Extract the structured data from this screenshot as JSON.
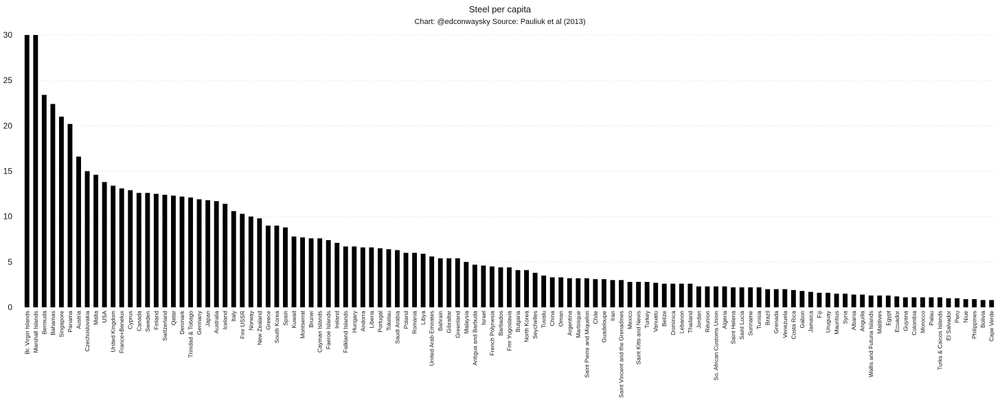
{
  "chart_data": {
    "type": "bar",
    "title": "Steel per capita",
    "subtitle": "Chart: @edconwaysky Source: Pauliuk et al (2013)",
    "ylim": [
      0,
      30
    ],
    "yticks": [
      0,
      5,
      10,
      15,
      20,
      25,
      30
    ],
    "grid": true,
    "bar_color": "#000000",
    "categories": [
      "Br. Virgin Islands",
      "Marshall Islands",
      "Bermuda",
      "Bahamas",
      "Singapore",
      "Panama",
      "Austria",
      "Czechoslovakia",
      "Malta",
      "USA",
      "United Kingdom",
      "France+Benelux",
      "Cyprus",
      "Canada",
      "Sweden",
      "Finland",
      "Switzerland",
      "Qatar",
      "Denmark",
      "Trinidad & Tobago",
      "Germany",
      "Japan",
      "Australia",
      "Iceland",
      "Italy",
      "Fmr USSR",
      "Norway",
      "New Zealand",
      "Greece",
      "South Korea",
      "Spain",
      "Kuwait",
      "Montserrat",
      "Brunei",
      "Cayman Islands",
      "Faeroe Islands",
      "Ireland",
      "Falkland Islands",
      "Hungary",
      "Andorra",
      "Liberia",
      "Portugal",
      "Tokelau",
      "Saudi Arabia",
      "Poland",
      "Romania",
      "Libya",
      "United Arab Emirates",
      "Bahrain",
      "Gibraltar",
      "Greenland",
      "Malaysia",
      "Antigua and Barbuda",
      "Israel",
      "French Polynesia",
      "Barbados",
      "Fmr Yugoslavia",
      "Bulgaria",
      "North Korea",
      "Seychelles",
      "Tuvalu",
      "China",
      "Oman",
      "Argentina",
      "Martinique",
      "Saint Pierre and Miquelon",
      "Chile",
      "Guadeloupe",
      "Iran",
      "Saint Vincent and the Grenadines",
      "Mexico",
      "Saint Kitts and Nevis",
      "Turkey",
      "Vanuatu",
      "Belize",
      "Dominica",
      "Lebanon",
      "Thailand",
      "Jordan",
      "Réunion",
      "So. African Customs Union",
      "Algeria",
      "Saint Helena",
      "Saint Lucia",
      "Suriname",
      "Tunisia",
      "Brazil",
      "Grenada",
      "Venezuela",
      "Costa Rica",
      "Gabon",
      "Jamaica",
      "Fiji",
      "Uruguay",
      "Mauritius",
      "Syria",
      "Albania",
      "Anguilla",
      "Wallis and Futuna Islands",
      "Maldives",
      "Egypt",
      "Ecuador",
      "Guyana",
      "Colombia",
      "Morocco",
      "Palau",
      "Turks & Caicos Islands",
      "El Salvador",
      "Peru",
      "Niue",
      "Philippines",
      "Bolivia",
      "Cape Verde"
    ],
    "values": [
      30,
      30,
      23.4,
      22.4,
      21.0,
      20.2,
      16.6,
      15.0,
      14.6,
      13.8,
      13.4,
      13.1,
      12.9,
      12.6,
      12.6,
      12.5,
      12.4,
      12.3,
      12.2,
      12.1,
      11.9,
      11.8,
      11.7,
      11.4,
      10.6,
      10.3,
      10.0,
      9.8,
      9.0,
      9.0,
      8.8,
      7.8,
      7.7,
      7.6,
      7.6,
      7.4,
      7.1,
      6.7,
      6.7,
      6.6,
      6.6,
      6.5,
      6.4,
      6.3,
      6.0,
      6.0,
      5.9,
      5.6,
      5.4,
      5.4,
      5.4,
      5.0,
      4.7,
      4.6,
      4.5,
      4.4,
      4.4,
      4.1,
      4.1,
      3.8,
      3.5,
      3.3,
      3.3,
      3.2,
      3.2,
      3.2,
      3.1,
      3.1,
      3.0,
      3.0,
      2.8,
      2.8,
      2.8,
      2.7,
      2.6,
      2.6,
      2.6,
      2.6,
      2.3,
      2.3,
      2.3,
      2.3,
      2.2,
      2.2,
      2.2,
      2.2,
      2.0,
      2.0,
      2.0,
      1.9,
      1.8,
      1.7,
      1.6,
      1.6,
      1.5,
      1.5,
      1.4,
      1.4,
      1.3,
      1.3,
      1.3,
      1.2,
      1.1,
      1.1,
      1.1,
      1.1,
      1.1,
      1.0,
      1.0,
      0.9,
      0.9,
      0.8,
      0.8
    ]
  }
}
